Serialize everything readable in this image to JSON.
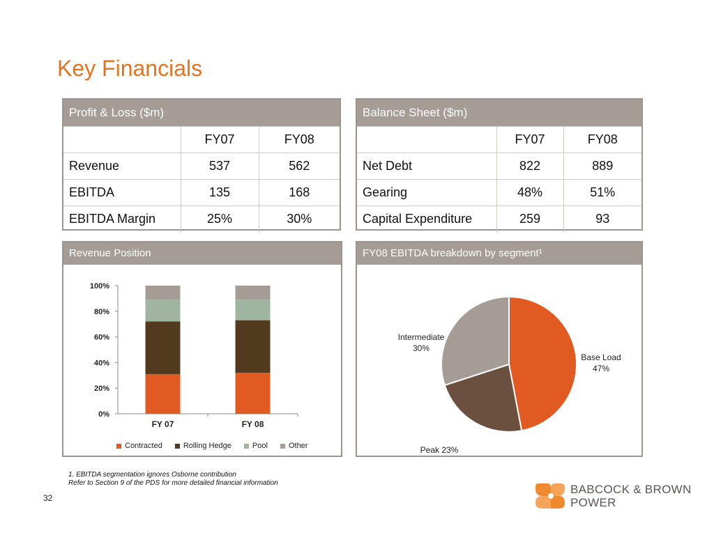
{
  "title": "Key Financials",
  "pl": {
    "header": "Profit & Loss ($m)",
    "columns": [
      "",
      "FY07",
      "FY08"
    ],
    "rows": [
      [
        "Revenue",
        "537",
        "562"
      ],
      [
        "EBITDA",
        "135",
        "168"
      ],
      [
        "EBITDA Margin",
        "25%",
        "30%"
      ]
    ]
  },
  "bs": {
    "header": "Balance Sheet ($m)",
    "columns": [
      "",
      "FY07",
      "FY08"
    ],
    "rows": [
      [
        "Net Debt",
        "822",
        "889"
      ],
      [
        "Gearing",
        "48%",
        "51%"
      ],
      [
        "Capital Expenditure",
        "259",
        "93"
      ]
    ]
  },
  "revenue_position": {
    "header": "Revenue Position"
  },
  "ebitda_breakdown": {
    "header": "FY08 EBITDA breakdown by segment¹"
  },
  "chart_data": [
    {
      "type": "bar",
      "stacked": true,
      "title": "",
      "categories": [
        "FY 07",
        "FY 08"
      ],
      "y_ticks": [
        "0%",
        "20%",
        "40%",
        "60%",
        "80%",
        "100%"
      ],
      "ylim": [
        0,
        100
      ],
      "grid": false,
      "legend_position": "bottom",
      "series": [
        {
          "name": "Contracted",
          "color": "#e05a22",
          "values": [
            31,
            32
          ]
        },
        {
          "name": "Rolling Hedge",
          "color": "#523a1f",
          "values": [
            41,
            41
          ]
        },
        {
          "name": "Pool",
          "color": "#a0b5a0",
          "values": [
            17,
            16
          ]
        },
        {
          "name": "Other",
          "color": "#a59d95",
          "values": [
            11,
            11
          ]
        }
      ]
    },
    {
      "type": "pie",
      "title": "",
      "slices": [
        {
          "label": "Base Load",
          "value": 47,
          "display": "47%",
          "color": "#e05a22"
        },
        {
          "label": "Peak",
          "value": 23,
          "display": "23%",
          "color": "#6b5040"
        },
        {
          "label": "Intermediate",
          "value": 30,
          "display": "30%",
          "color": "#a59d95"
        }
      ]
    }
  ],
  "footnotes": [
    "1.  EBITDA segmentation ignores Osborne contribution",
    "Refer to Section 9 of the PDS for more detailed financial information"
  ],
  "page_number": "32",
  "logo": {
    "line1": "BABCOCK & BROWN",
    "line2": "POWER",
    "colors": {
      "primary": "#f08a30",
      "text": "#5a5550"
    }
  }
}
